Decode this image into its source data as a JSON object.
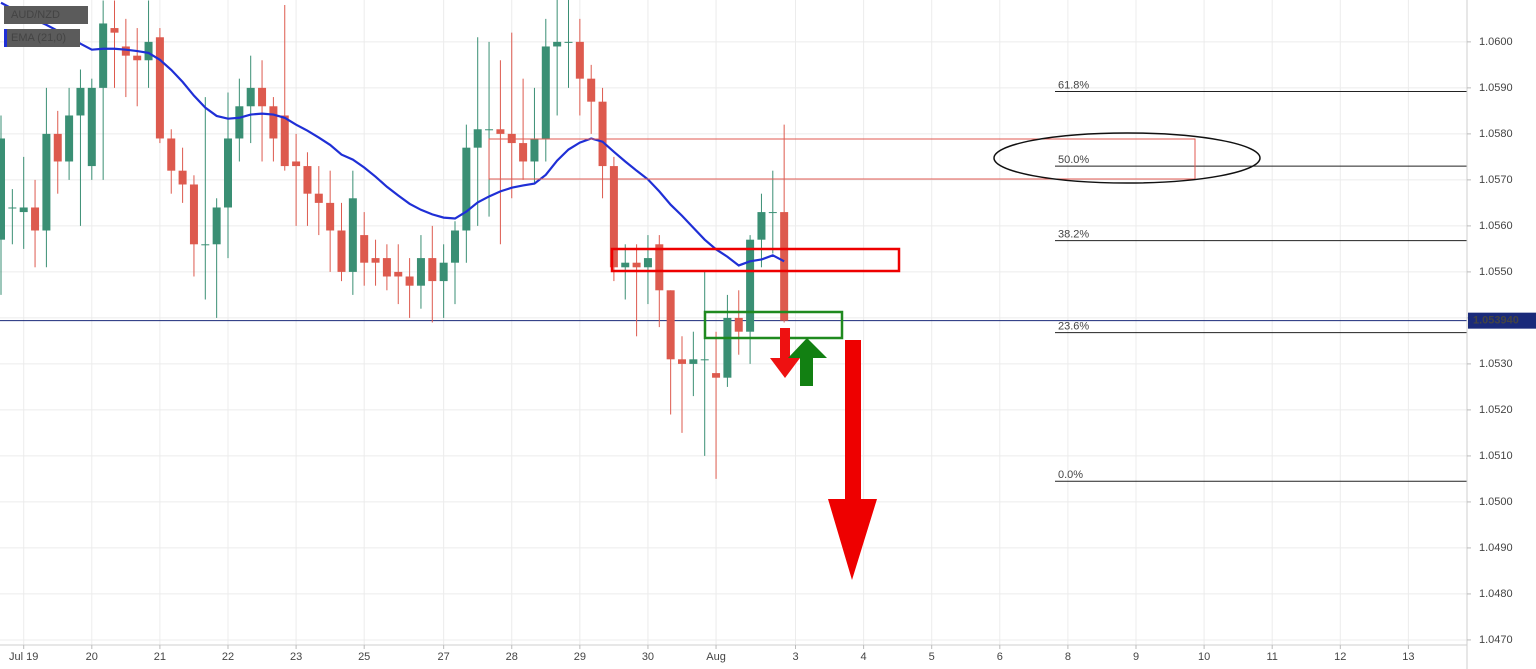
{
  "chart_data": {
    "type": "candlestick",
    "categories": [
      null,
      null,
      "Jul 19",
      null,
      null,
      null,
      null,
      null,
      "20",
      null,
      null,
      null,
      null,
      null,
      "21",
      null,
      null,
      null,
      null,
      null,
      "22",
      null,
      null,
      null,
      null,
      null,
      "23",
      null,
      null,
      null,
      null,
      null,
      "25",
      null,
      null,
      null,
      null,
      null,
      null,
      "27",
      null,
      null,
      null,
      null,
      null,
      "28",
      null,
      null,
      null,
      null,
      null,
      "29",
      null,
      null,
      null,
      null,
      null,
      "30",
      null,
      null,
      null,
      null,
      null,
      "Aug",
      null,
      null,
      null,
      null,
      null,
      null,
      "3",
      null,
      null,
      null,
      null,
      null,
      "4",
      null,
      null,
      null,
      null,
      null,
      "5",
      null,
      null,
      null,
      null,
      null,
      "6",
      null,
      null,
      null,
      null,
      null,
      "8",
      null,
      null,
      null,
      null,
      null,
      "9",
      null,
      null,
      null,
      null,
      null,
      "10",
      null,
      null,
      null,
      null,
      null,
      "11",
      null,
      null,
      null,
      null,
      null,
      "12",
      null,
      null,
      null,
      null,
      null,
      "13",
      null,
      null,
      null,
      null
    ],
    "series": [
      {
        "name": "AUD/NZD",
        "up_color": "#3a8f74",
        "down_color": "#dd5a4e",
        "open": [
          1.0557,
          1.0564,
          1.0563,
          1.0564,
          1.0559,
          1.058,
          1.0574,
          1.0584,
          1.0573,
          1.059,
          1.0603,
          1.0599,
          1.0597,
          1.0596,
          1.0601,
          1.0579,
          1.0572,
          1.0569,
          1.0556,
          1.0556,
          1.0564,
          1.0579,
          1.0586,
          1.059,
          1.0586,
          1.0584,
          1.0574,
          1.0573,
          1.0567,
          1.0565,
          1.0559,
          1.055,
          1.0558,
          1.0553,
          1.0553,
          1.055,
          1.0549,
          1.0547,
          1.0553,
          1.0548,
          1.0552,
          1.0559,
          1.0577,
          1.0581,
          1.0581,
          1.058,
          1.0578,
          1.0574,
          1.0579,
          1.0599,
          1.06,
          1.06,
          1.0592,
          1.0587,
          1.0573,
          1.0551,
          1.0552,
          1.0551,
          1.0556,
          1.0546,
          1.0531,
          1.053,
          1.0531,
          1.0528,
          1.0527,
          1.054,
          1.0537,
          1.0557,
          1.0563,
          1.0563,
          null,
          null,
          null,
          null,
          null,
          null,
          null,
          null,
          null,
          null,
          null,
          null,
          null,
          null,
          null,
          null,
          null,
          null,
          null,
          null,
          null,
          null,
          null,
          null,
          null,
          null,
          null,
          null,
          null,
          null,
          null,
          null,
          null,
          null,
          null,
          null,
          null,
          null,
          null,
          null,
          null,
          null,
          null,
          null,
          null,
          null,
          null,
          null,
          null,
          null,
          null,
          null,
          null,
          null,
          null,
          null,
          null,
          null,
          null
        ],
        "high": [
          1.0584,
          1.0568,
          1.0575,
          1.057,
          1.059,
          1.0585,
          1.059,
          1.0594,
          1.0592,
          1.0609,
          1.0609,
          1.0605,
          1.0603,
          1.0609,
          1.0603,
          1.0581,
          1.0577,
          1.0571,
          1.0588,
          1.0566,
          1.0589,
          1.0592,
          1.0597,
          1.0596,
          1.0588,
          1.0608,
          1.058,
          1.0576,
          1.0573,
          1.0572,
          1.0565,
          1.0572,
          1.0563,
          1.0557,
          1.0556,
          1.0556,
          1.0553,
          1.0558,
          1.056,
          1.0556,
          1.0561,
          1.0582,
          1.0601,
          1.06,
          1.0596,
          1.0602,
          1.0592,
          1.059,
          1.0605,
          1.0611,
          1.0611,
          1.0605,
          1.0595,
          1.059,
          1.0575,
          1.0556,
          1.0556,
          1.0558,
          1.0558,
          1.0546,
          1.0536,
          1.0537,
          1.055,
          1.0537,
          1.0545,
          1.0546,
          1.0558,
          1.0567,
          1.0572,
          1.0582,
          null,
          null,
          null,
          null,
          null,
          null,
          null,
          null,
          null,
          null,
          null,
          null,
          null,
          null,
          null,
          null,
          null,
          null,
          null,
          null,
          null,
          null,
          null,
          null,
          null,
          null,
          null,
          null,
          null,
          null,
          null,
          null,
          null,
          null,
          null,
          null,
          null,
          null,
          null,
          null,
          null,
          null,
          null,
          null,
          null,
          null,
          null,
          null,
          null,
          null,
          null,
          null,
          null,
          null,
          null,
          null,
          null,
          null,
          null
        ],
        "low": [
          1.0545,
          1.0556,
          1.0555,
          1.0551,
          1.0551,
          1.0567,
          1.057,
          1.056,
          1.057,
          1.057,
          1.059,
          1.0588,
          1.0586,
          1.059,
          1.0578,
          1.0567,
          1.0565,
          1.0549,
          1.0544,
          1.054,
          1.0553,
          1.0574,
          1.0578,
          1.0574,
          1.0574,
          1.0572,
          1.056,
          1.056,
          1.0558,
          1.055,
          1.0548,
          1.0545,
          1.0547,
          1.0547,
          1.0546,
          1.0543,
          1.054,
          1.0542,
          1.0539,
          1.054,
          1.0543,
          1.0552,
          1.056,
          1.0562,
          1.0556,
          1.0566,
          1.057,
          1.0569,
          1.0574,
          1.0584,
          1.059,
          1.0584,
          1.058,
          1.0566,
          1.0548,
          1.0544,
          1.0536,
          1.0543,
          1.0538,
          1.0519,
          1.0515,
          1.0523,
          1.051,
          1.0505,
          1.0525,
          1.0532,
          1.053,
          1.0551,
          1.0554,
          1.0539,
          null,
          null,
          null,
          null,
          null,
          null,
          null,
          null,
          null,
          null,
          null,
          null,
          null,
          null,
          null,
          null,
          null,
          null,
          null,
          null,
          null,
          null,
          null,
          null,
          null,
          null,
          null,
          null,
          null,
          null,
          null,
          null,
          null,
          null,
          null,
          null,
          null,
          null,
          null,
          null,
          null,
          null,
          null,
          null,
          null,
          null,
          null,
          null,
          null,
          null,
          null,
          null,
          null,
          null,
          null,
          null,
          null,
          null,
          null
        ],
        "close": [
          1.0579,
          1.0564,
          1.0564,
          1.0559,
          1.058,
          1.0574,
          1.0584,
          1.059,
          1.059,
          1.0604,
          1.0602,
          1.0597,
          1.0596,
          1.06,
          1.0579,
          1.0572,
          1.0569,
          1.0556,
          1.0556,
          1.0564,
          1.0579,
          1.0586,
          1.059,
          1.0586,
          1.0579,
          1.0573,
          1.0573,
          1.0567,
          1.0565,
          1.0559,
          1.055,
          1.0566,
          1.0552,
          1.0552,
          1.0549,
          1.0549,
          1.0547,
          1.0553,
          1.0548,
          1.0552,
          1.0559,
          1.0577,
          1.0581,
          1.0581,
          1.058,
          1.0578,
          1.0574,
          1.0579,
          1.0599,
          1.06,
          1.06,
          1.0592,
          1.0587,
          1.0573,
          1.0551,
          1.0552,
          1.0551,
          1.0553,
          1.0546,
          1.0531,
          1.053,
          1.0531,
          1.0531,
          1.0527,
          1.054,
          1.0537,
          1.0557,
          1.0563,
          1.0563,
          1.05394,
          null,
          null,
          null,
          null,
          null,
          null,
          null,
          null,
          null,
          null,
          null,
          null,
          null,
          null,
          null,
          null,
          null,
          null,
          null,
          null,
          null,
          null,
          null,
          null,
          null,
          null,
          null,
          null,
          null,
          null,
          null,
          null,
          null,
          null,
          null,
          null,
          null,
          null,
          null,
          null,
          null,
          null,
          null,
          null,
          null,
          null,
          null,
          null,
          null,
          null,
          null,
          null,
          null,
          null,
          null,
          null,
          null,
          null,
          null
        ]
      },
      {
        "name": "EMA (21,0)",
        "color": "#1f2fd6",
        "values": [
          1.06085,
          1.06072,
          1.06061,
          1.06048,
          1.06037,
          1.06024,
          1.06011,
          1.05996,
          1.05983,
          1.05985,
          1.05985,
          1.05983,
          1.0598,
          1.05976,
          1.05961,
          1.05939,
          1.05913,
          1.05883,
          1.05857,
          1.05839,
          1.05833,
          1.05835,
          1.05842,
          1.05844,
          1.05842,
          1.05835,
          1.0582,
          1.05807,
          1.05792,
          1.05776,
          1.05755,
          1.05744,
          1.05727,
          1.05707,
          1.05685,
          1.05666,
          1.05648,
          1.05635,
          1.05625,
          1.05618,
          1.05616,
          1.05631,
          1.05651,
          1.05664,
          1.05675,
          1.05683,
          1.05688,
          1.05692,
          1.05711,
          1.05742,
          1.05766,
          1.05781,
          1.0579,
          1.05783,
          1.05761,
          1.0574,
          1.0572,
          1.05701,
          1.05675,
          1.05646,
          1.05622,
          1.05596,
          1.0557,
          1.05549,
          1.05533,
          1.05514,
          1.05523,
          1.05527,
          1.05536,
          1.05523,
          null,
          null,
          null,
          null,
          null,
          null,
          null,
          null,
          null,
          null,
          null,
          null,
          null,
          null,
          null,
          null,
          null,
          null,
          null,
          null,
          null,
          null,
          null,
          null,
          null,
          null,
          null,
          null,
          null,
          null,
          null,
          null,
          null,
          null,
          null,
          null,
          null,
          null,
          null,
          null,
          null,
          null,
          null,
          null,
          null,
          null,
          null,
          null,
          null,
          null,
          null,
          null,
          null,
          null,
          null,
          null,
          null,
          null,
          null
        ]
      }
    ],
    "ylim": [
      1.04689,
      1.06091
    ],
    "yticks": [
      {
        "value": 1.047,
        "label": "1.0470"
      },
      {
        "value": 1.048,
        "label": "1.0480"
      },
      {
        "value": 1.049,
        "label": "1.0490"
      },
      {
        "value": 1.05,
        "label": "1.0500"
      },
      {
        "value": 1.051,
        "label": "1.0510"
      },
      {
        "value": 1.052,
        "label": "1.0520"
      },
      {
        "value": 1.053,
        "label": "1.0530"
      },
      {
        "value": 1.054,
        "label": "1.0540"
      },
      {
        "value": 1.055,
        "label": "1.0550"
      },
      {
        "value": 1.056,
        "label": "1.0560"
      },
      {
        "value": 1.057,
        "label": "1.0570"
      },
      {
        "value": 1.058,
        "label": "1.0580"
      },
      {
        "value": 1.059,
        "label": "1.0590"
      },
      {
        "value": 1.06,
        "label": "1.0600"
      }
    ],
    "grid": true,
    "fib_levels": [
      {
        "value": 1.05892,
        "label": "61.8%"
      },
      {
        "value": 1.0573,
        "label": "50.0%"
      },
      {
        "value": 1.05568,
        "label": "38.2%"
      },
      {
        "value": 1.05368,
        "label": "23.6%"
      },
      {
        "value": 1.05045,
        "label": "0.0%"
      }
    ],
    "last_price": {
      "value": 1.05394,
      "label": "1.053940",
      "color": "#1a2a7a"
    }
  }
}
